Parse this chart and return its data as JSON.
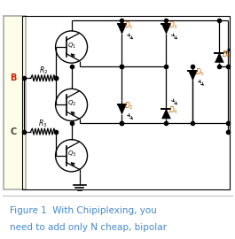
{
  "background_color": "#ffffff",
  "panel_bg": "#fefee8",
  "panel_border": "#aaaaaa",
  "circuit_color": "#000000",
  "diode_color": "#000000",
  "label_B_color": "#cc2200",
  "label_C_color": "#444444",
  "label_D_color": "#cc6600",
  "label_Q_color": "#000000",
  "caption_color": "#4488cc",
  "caption_text1": "Figure 1  With Chipiplexing, you",
  "caption_text2": "need to add only N cheap, bipolar",
  "caption_fontsize": 7.5,
  "outer_border_color": "#bbbbbb",
  "fig_width": 2.65,
  "fig_height": 2.7
}
